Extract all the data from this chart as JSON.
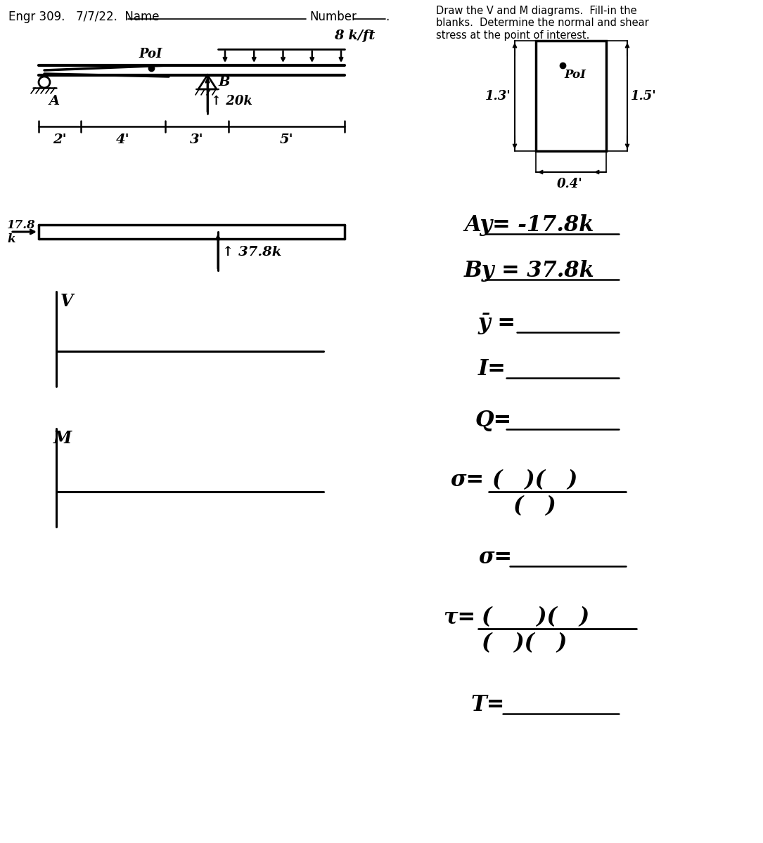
{
  "bg_color": "#ffffff",
  "line_color": "#000000",
  "header": "Engr 309.   7/7/22.  Name",
  "number_label": "Number",
  "instructions": "Draw the V and M diagrams.  Fill-in the\nblanks.  Determine the normal and shear\nstress at the point of interest.",
  "beam_dims": [
    "2'",
    "4'",
    "3'",
    "5'"
  ],
  "dist_load_label": "8 k/ft",
  "point_load_label": "20k",
  "poi_label": "PoI",
  "A_label": "A",
  "B_label": "B",
  "load_17_label": "17.8\nk",
  "load_37_label": "37.8k",
  "V_label": "V",
  "M_label": "M",
  "cs_left_dim": "1.3'",
  "cs_right_dim": "1.5'",
  "cs_bot_dim": "0.4'",
  "Ay_text": "Ay= -17.8k",
  "By_text": "By = 37.8k",
  "ybar_text": "ȳ =",
  "I_text": "I=",
  "Q_text": "Q=",
  "sigma_label": "σ=",
  "sigma_num": "( )( )",
  "sigma_den": "( )",
  "sigma_result": "σ=",
  "tau_label": "τ=",
  "tau_num": "( )( )",
  "tau_den": "( )( )",
  "T_result": "T="
}
